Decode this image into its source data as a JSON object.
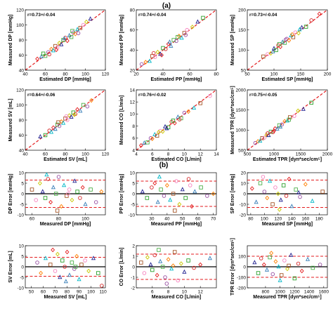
{
  "figure": {
    "panel_a_label": "(a)",
    "panel_b_label": "(b)"
  },
  "chart_data": [
    {
      "type": "scatter",
      "panel": "a",
      "row": 0,
      "col": 0,
      "annotation": "r=0.73+/-0.04",
      "xlabel": "Estimated DP [mmHg]",
      "ylabel": "Measured DP [mmHg]",
      "xlim": [
        40,
        120
      ],
      "ylim": [
        40,
        120
      ],
      "xticks": [
        40,
        60,
        80,
        100,
        120
      ],
      "yticks": [
        40,
        60,
        80,
        100,
        120
      ],
      "identity_line": true,
      "x": [
        52,
        56,
        60,
        63,
        66,
        68,
        70,
        72,
        74,
        76,
        78,
        80,
        82,
        84,
        86,
        88,
        90,
        92,
        95,
        98,
        101,
        105,
        58,
        64,
        71,
        79,
        87,
        93
      ],
      "y": [
        55,
        58,
        59,
        64,
        68,
        66,
        72,
        70,
        76,
        74,
        80,
        83,
        79,
        86,
        84,
        90,
        88,
        94,
        96,
        100,
        104,
        108,
        62,
        61,
        67,
        82,
        92,
        89
      ]
    },
    {
      "type": "scatter",
      "panel": "a",
      "row": 0,
      "col": 1,
      "annotation": "r=0.74+/-0.04",
      "xlabel": "Estimated PP [mmHg]",
      "ylabel": "Measured PP [mmHg]",
      "xlim": [
        20,
        80
      ],
      "ylim": [
        20,
        80
      ],
      "xticks": [
        20,
        40,
        60,
        80
      ],
      "yticks": [
        20,
        40,
        60,
        80
      ],
      "identity_line": true,
      "x": [
        24,
        27,
        30,
        32,
        34,
        36,
        38,
        40,
        42,
        44,
        46,
        48,
        50,
        52,
        54,
        56,
        58,
        62,
        66,
        70,
        33,
        39,
        45,
        51,
        57
      ],
      "y": [
        26,
        28,
        29,
        34,
        33,
        38,
        36,
        42,
        41,
        46,
        44,
        50,
        49,
        54,
        52,
        57,
        60,
        63,
        68,
        72,
        37,
        35,
        48,
        53,
        55
      ]
    },
    {
      "type": "scatter",
      "panel": "a",
      "row": 0,
      "col": 2,
      "annotation": "r=0.73+/-0.04",
      "xlabel": "Estimated SP [mmHg]",
      "ylabel": "Measured SP [mmHg]",
      "xlim": [
        50,
        200
      ],
      "ylim": [
        50,
        200
      ],
      "xticks": [
        50,
        100,
        150,
        200
      ],
      "yticks": [
        50,
        100,
        150,
        200
      ],
      "identity_line": true,
      "x": [
        80,
        88,
        94,
        100,
        104,
        108,
        112,
        116,
        120,
        124,
        128,
        132,
        136,
        140,
        146,
        152,
        160,
        170,
        185,
        98,
        110,
        122,
        134,
        148
      ],
      "y": [
        84,
        90,
        92,
        104,
        100,
        112,
        108,
        120,
        118,
        128,
        124,
        136,
        132,
        144,
        142,
        156,
        158,
        174,
        190,
        96,
        115,
        126,
        139,
        151
      ]
    },
    {
      "type": "scatter",
      "panel": "a",
      "row": 1,
      "col": 0,
      "annotation": "r=0.64+/-0.06",
      "xlabel": "Estimated SV [mL]",
      "ylabel": "Measured SV [mL]",
      "xlim": [
        40,
        120
      ],
      "ylim": [
        40,
        120
      ],
      "xticks": [
        40,
        60,
        80,
        100,
        120
      ],
      "yticks": [
        40,
        60,
        80,
        100,
        120
      ],
      "identity_line": true,
      "x": [
        55,
        60,
        64,
        68,
        70,
        72,
        74,
        76,
        78,
        80,
        82,
        84,
        86,
        88,
        90,
        92,
        95,
        98,
        102,
        106,
        66,
        73,
        81,
        89
      ],
      "y": [
        58,
        60,
        66,
        70,
        68,
        74,
        72,
        78,
        76,
        82,
        80,
        86,
        84,
        90,
        88,
        94,
        92,
        100,
        98,
        106,
        64,
        77,
        85,
        87
      ]
    },
    {
      "type": "scatter",
      "panel": "a",
      "row": 1,
      "col": 1,
      "annotation": "r=0.76+/-0.02",
      "xlabel": "Estimated CO [L/min]",
      "ylabel": "Measured CO [L/min]",
      "xlim": [
        4,
        14
      ],
      "ylim": [
        4,
        14
      ],
      "xticks": [
        4,
        6,
        8,
        10,
        12,
        14
      ],
      "yticks": [
        4,
        6,
        8,
        10,
        12,
        14
      ],
      "identity_line": true,
      "x": [
        4.6,
        5.0,
        5.4,
        5.8,
        6.0,
        6.3,
        6.6,
        7.0,
        7.3,
        7.6,
        8.0,
        8.4,
        8.8,
        9.2,
        9.6,
        10.0,
        10.5,
        11.2,
        12.0,
        13.2,
        6.8,
        7.8,
        8.6,
        9.4
      ],
      "y": [
        4.8,
        5.2,
        5.3,
        6.0,
        5.9,
        6.6,
        6.4,
        7.2,
        7.1,
        7.9,
        7.8,
        8.7,
        8.5,
        9.5,
        9.3,
        10.2,
        10.4,
        11.0,
        11.8,
        13.0,
        7.0,
        7.6,
        8.9,
        9.1
      ]
    },
    {
      "type": "scatter",
      "panel": "a",
      "row": 1,
      "col": 2,
      "annotation": "r=0.75+/-0.05",
      "xlabel": "Estimated TPR [dyn*sec/cm⁵]",
      "ylabel": "Measured TPR [dyn*sec/cm⁵]",
      "xlim": [
        500,
        2000
      ],
      "ylim": [
        500,
        2000
      ],
      "xticks": [
        500,
        1000,
        1500,
        2000
      ],
      "yticks": [
        500,
        1000,
        1500,
        2000
      ],
      "identity_line": true,
      "x": [
        650,
        700,
        740,
        780,
        820,
        860,
        900,
        940,
        980,
        1020,
        1060,
        1100,
        1150,
        1200,
        1250,
        1300,
        1380,
        1450,
        1550,
        1700,
        880,
        1000,
        1120,
        1280
      ],
      "y": [
        680,
        720,
        730,
        800,
        810,
        880,
        870,
        960,
        950,
        1040,
        1030,
        1120,
        1140,
        1220,
        1230,
        1320,
        1350,
        1480,
        1520,
        1680,
        920,
        980,
        1080,
        1260
      ]
    },
    {
      "type": "scatter",
      "panel": "b",
      "row": 0,
      "col": 0,
      "xlabel": "Measured DP [mmHg]",
      "ylabel": "DP Error [mmHg]",
      "xlim": [
        55,
        115
      ],
      "ylim": [
        -10,
        10
      ],
      "xticks": [
        60,
        80,
        100
      ],
      "yticks": [
        -10,
        -5,
        0,
        5,
        10
      ],
      "mean_line": 0,
      "limits": [
        -6.5,
        6.5
      ],
      "x": [
        60,
        63,
        66,
        68,
        70,
        72,
        74,
        76,
        78,
        80,
        82,
        84,
        86,
        88,
        90,
        92,
        94,
        96,
        98,
        100,
        104,
        108,
        112,
        71,
        79,
        87
      ],
      "y": [
        2,
        -3,
        5,
        1,
        -2,
        7,
        -4,
        3,
        0,
        8,
        -6,
        4,
        -1,
        2,
        -3,
        6,
        1,
        -2,
        3,
        -5,
        2,
        -4,
        1,
        9,
        -8,
        0
      ]
    },
    {
      "type": "scatter",
      "panel": "b",
      "row": 0,
      "col": 1,
      "xlabel": "Measured PP [mmHg]",
      "ylabel": "PP Error [mmHg]",
      "xlim": [
        20,
        72
      ],
      "ylim": [
        -10,
        10
      ],
      "xticks": [
        30,
        40,
        50,
        60,
        70
      ],
      "yticks": [
        -10,
        -5,
        0,
        5,
        10
      ],
      "mean_line": 0,
      "limits": [
        -6,
        6
      ],
      "x": [
        24,
        27,
        30,
        32,
        34,
        36,
        38,
        40,
        42,
        44,
        46,
        48,
        50,
        52,
        54,
        56,
        58,
        62,
        66,
        70,
        35,
        45,
        55
      ],
      "y": [
        1,
        -2,
        3,
        5,
        -4,
        2,
        -1,
        4,
        -3,
        0,
        6,
        -5,
        2,
        -2,
        7,
        -6,
        1,
        3,
        -1,
        0,
        8,
        -8,
        4
      ]
    },
    {
      "type": "scatter",
      "panel": "b",
      "row": 0,
      "col": 2,
      "xlabel": "Measured SP [mmHg]",
      "ylabel": "SP Error [mmHg]",
      "xlim": [
        75,
        192
      ],
      "ylim": [
        -20,
        20
      ],
      "xticks": [
        80,
        100,
        120,
        140,
        160,
        180
      ],
      "yticks": [
        -20,
        -10,
        0,
        10,
        20
      ],
      "mean_line": 0,
      "limits": [
        -13,
        13
      ],
      "x": [
        82,
        88,
        94,
        100,
        104,
        108,
        112,
        116,
        120,
        124,
        128,
        132,
        136,
        140,
        146,
        152,
        160,
        170,
        185,
        98,
        122,
        150
      ],
      "y": [
        5,
        -8,
        10,
        2,
        -4,
        12,
        -10,
        6,
        0,
        -6,
        8,
        -2,
        14,
        -12,
        4,
        -3,
        9,
        -7,
        2,
        16,
        -15,
        1
      ]
    },
    {
      "type": "scatter",
      "panel": "b",
      "row": 1,
      "col": 0,
      "xlabel": "Measured SV [mL]",
      "ylabel": "SV Error [mL]",
      "xlim": [
        45,
        112
      ],
      "ylim": [
        -10,
        10
      ],
      "xticks": [
        50,
        60,
        70,
        80,
        90,
        100,
        110
      ],
      "yticks": [
        -10,
        -5,
        0,
        5,
        10
      ],
      "mean_line": 0,
      "limits": [
        -4.5,
        4.5
      ],
      "x": [
        55,
        58,
        62,
        66,
        70,
        72,
        74,
        76,
        78,
        80,
        82,
        84,
        86,
        88,
        90,
        92,
        95,
        98,
        102,
        106,
        109,
        68,
        79,
        87
      ],
      "y": [
        2,
        -3,
        4,
        1,
        -2,
        6,
        -5,
        3,
        0,
        7,
        -4,
        2,
        -1,
        5,
        -6,
        1,
        3,
        -2,
        4,
        -3,
        -9,
        8,
        -7,
        0
      ]
    },
    {
      "type": "scatter",
      "panel": "b",
      "row": 1,
      "col": 1,
      "xlabel": "Measured CO [L/min]",
      "ylabel": "CO Error [L/min]",
      "xlim": [
        4,
        14
      ],
      "ylim": [
        -2,
        2
      ],
      "xticks": [
        6,
        8,
        10,
        12
      ],
      "yticks": [
        -2,
        -1,
        0,
        1,
        2
      ],
      "mean_line": 0,
      "limits": [
        -1.2,
        1.2
      ],
      "x": [
        4.6,
        5.0,
        5.4,
        5.8,
        6.0,
        6.3,
        6.6,
        7.0,
        7.3,
        7.6,
        8.0,
        8.4,
        8.8,
        9.2,
        9.6,
        10.0,
        10.5,
        11.2,
        12.0,
        13.2,
        6.8,
        7.8,
        8.6
      ],
      "y": [
        0.4,
        -0.6,
        0.9,
        0.2,
        -0.3,
        1.1,
        -0.8,
        0.5,
        0.0,
        -1.0,
        0.7,
        -0.2,
        1.4,
        -1.3,
        0.3,
        -0.5,
        0.6,
        -0.1,
        0.2,
        0.8,
        1.6,
        -1.6,
        0.1
      ]
    },
    {
      "type": "scatter",
      "panel": "b",
      "row": 1,
      "col": 2,
      "xlabel": "Measured TPR [dyn*sec/cm⁵]",
      "ylabel": "TPR Error [dyn*sec/cm⁵]",
      "xlim": [
        550,
        1650
      ],
      "ylim": [
        -200,
        200
      ],
      "xticks": [
        800,
        1000,
        1200,
        1400,
        1600
      ],
      "yticks": [
        -200,
        -100,
        0,
        100
      ],
      "mean_line": 0,
      "limits": [
        -100,
        100
      ],
      "x": [
        650,
        700,
        740,
        780,
        820,
        860,
        900,
        940,
        980,
        1020,
        1060,
        1100,
        1150,
        1200,
        1250,
        1300,
        1380,
        1450,
        1550,
        880,
        1000,
        1120
      ],
      "y": [
        40,
        -60,
        80,
        20,
        -30,
        90,
        -70,
        50,
        0,
        -80,
        60,
        -20,
        110,
        -110,
        30,
        -40,
        70,
        -10,
        20,
        130,
        -130,
        10
      ]
    }
  ],
  "style": {
    "series_colors": [
      "#e41a1c",
      "#377eb8",
      "#4daf4a",
      "#984ea3",
      "#ff7f00",
      "#00b7c7",
      "#a65628",
      "#f781bf",
      "#c8c800",
      "#1f1f8f",
      "#2ca02c",
      "#d62728"
    ],
    "marker_shapes": [
      "circle",
      "square",
      "triangle",
      "diamond"
    ],
    "line_color": "#e31a1c",
    "zero_line_color": "#000000"
  }
}
